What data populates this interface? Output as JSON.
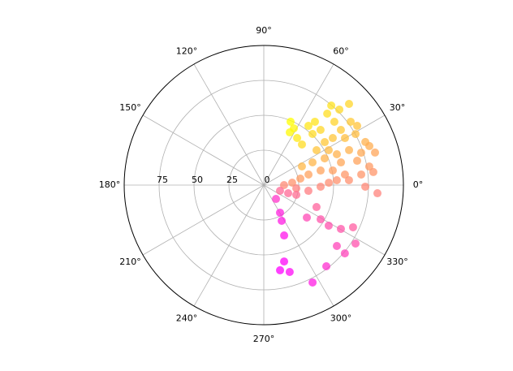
{
  "chart_data": {
    "type": "polar-scatter",
    "theta": [
      67.1,
      62.1,
      63.8,
      54.7,
      46.8,
      53.0,
      51.1,
      46.4,
      44.2,
      48.4,
      49.7,
      45.0,
      43.6,
      41.9,
      35.6,
      36.1,
      32.4,
      35.2,
      34.3,
      30.1,
      29.1,
      23.0,
      18.4,
      16.3,
      20.3,
      22.3,
      22.9,
      23.7,
      16.4,
      14.6,
      10.0,
      6.8,
      6.2,
      7.4,
      12.0,
      14.4,
      13.3,
      10.1,
      4.9,
      0.0,
      340.7,
      341.6,
      354.3,
      352.7,
      358.4,
      2.1,
      3.8,
      3.3,
      359.1,
      355.9,
      311.4,
      300.5,
      296.6,
      292.0,
      343.3,
      323.0,
      337.4,
      329.0,
      328.0,
      330.4,
      334.7,
      327.5,
      319.9,
      320.2,
      307.6,
      296.6,
      284.9,
      286.6,
      280.8,
      26.1,
      25.0,
      33.5,
      28.3
    ],
    "r": [
      49.3,
      46.0,
      42.1,
      41.3,
      39.9,
      53.1,
      58.3,
      50.6,
      56.7,
      68.4,
      74.7,
      76.5,
      84.3,
      67.9,
      67.9,
      77.0,
      79.2,
      53.4,
      59.8,
      67.2,
      75.2,
      79.0,
      73.5,
      83.0,
      80.6,
      66.0,
      56.8,
      47.6,
      57.6,
      69.1,
      76.7,
      79.0,
      70.2,
      58.6,
      50.5,
      42.0,
      32.9,
      26.6,
      20.4,
      14.5,
      12.3,
      18.4,
      23.4,
      32.2,
      40.7,
      46.6,
      52.4,
      61.1,
      72.7,
      81.6,
      13.2,
      22.9,
      28.6,
      38.9,
      24.3,
      38.6,
      40.9,
      47.5,
      54.8,
      63.5,
      70.7,
      77.9,
      75.9,
      68.1,
      73.4,
      78.0,
      56.6,
      64.9,
      62.1,
      30.4,
      38.5,
      45.3,
      52.8
    ],
    "colormap": [
      "#ff00ff",
      "#ffff00"
    ],
    "rlim": [
      0,
      100
    ],
    "rticks": [
      0,
      25,
      50,
      75
    ],
    "thetaticks": [
      {
        "value": 0,
        "label": "0°"
      },
      {
        "value": 30,
        "label": "30°"
      },
      {
        "value": 60,
        "label": "60°"
      },
      {
        "value": 90,
        "label": "90°"
      },
      {
        "value": 120,
        "label": "120°"
      },
      {
        "value": 150,
        "label": "150°"
      },
      {
        "value": 180,
        "label": "180°"
      },
      {
        "value": 210,
        "label": "210°"
      },
      {
        "value": 240,
        "label": "240°"
      },
      {
        "value": 270,
        "label": "270°"
      },
      {
        "value": 300,
        "label": "300°"
      },
      {
        "value": 330,
        "label": "330°"
      }
    ],
    "grid": true
  }
}
